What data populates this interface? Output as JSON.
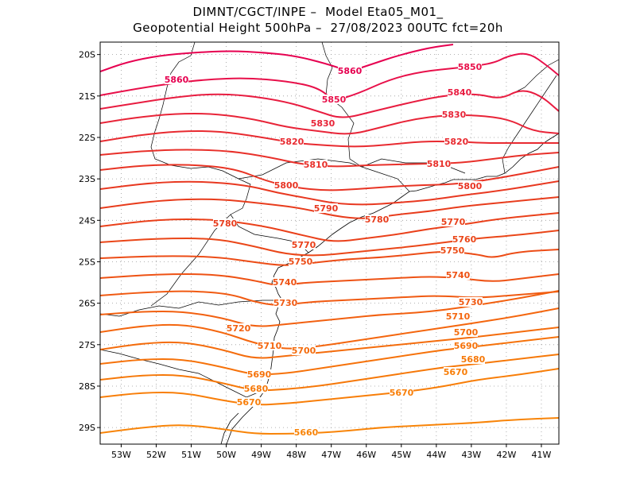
{
  "title": {
    "line1": "DIMNT/CGCT/INPE –  Model Eta05_M01_",
    "line2": "Geopotential Height 500hPa –  27/08/2023 00UTC fct=20h"
  },
  "map": {
    "lon_range": [
      -53.6,
      -40.5
    ],
    "lat_range": [
      -29.4,
      -19.7
    ],
    "lat_ticks": [
      "20S",
      "21S",
      "22S",
      "23S",
      "24S",
      "25S",
      "26S",
      "27S",
      "28S",
      "29S"
    ],
    "lon_ticks": [
      "53W",
      "52W",
      "51W",
      "50W",
      "49W",
      "48W",
      "47W",
      "46W",
      "45W",
      "44W",
      "43W",
      "42W",
      "41W"
    ]
  },
  "contours": [
    {
      "label": "5860",
      "color": "#e60050"
    },
    {
      "label": "5850",
      "color": "#e8104a"
    },
    {
      "label": "5840",
      "color": "#e81c40"
    },
    {
      "label": "5830",
      "color": "#e82438"
    },
    {
      "label": "5820",
      "color": "#e82a30"
    },
    {
      "label": "5810",
      "color": "#e8302a"
    },
    {
      "label": "5800",
      "color": "#e83424"
    },
    {
      "label": "5790",
      "color": "#e83820"
    },
    {
      "label": "5780",
      "color": "#e83c1c"
    },
    {
      "label": "5770",
      "color": "#ea401a"
    },
    {
      "label": "5760",
      "color": "#ea4618"
    },
    {
      "label": "5750",
      "color": "#ec4c16"
    },
    {
      "label": "5740",
      "color": "#ee5214"
    },
    {
      "label": "5730",
      "color": "#f05a12"
    },
    {
      "label": "5720",
      "color": "#f26010"
    },
    {
      "label": "5710",
      "color": "#f4660e"
    },
    {
      "label": "5700",
      "color": "#f46c0c"
    },
    {
      "label": "5690",
      "color": "#f6720a"
    },
    {
      "label": "5680",
      "color": "#f67808"
    },
    {
      "label": "5670",
      "color": "#f87e08"
    },
    {
      "label": "5660",
      "color": "#f88408"
    }
  ]
}
